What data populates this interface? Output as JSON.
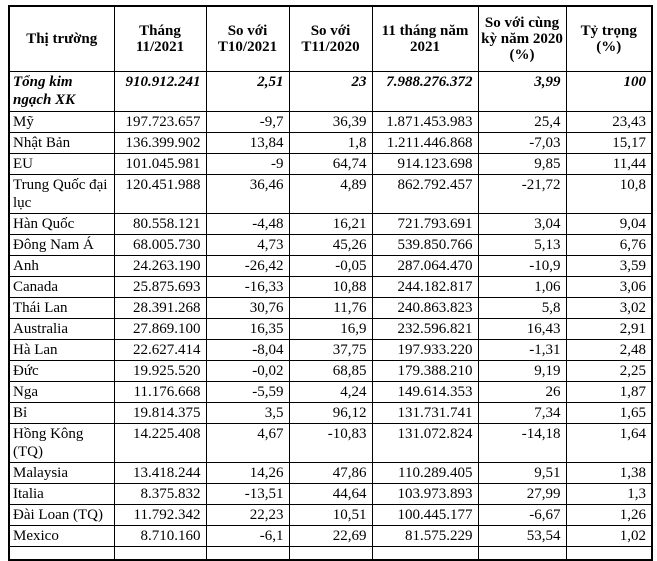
{
  "table": {
    "name": "export-markets-table",
    "columns": [
      "Thị trường",
      "Tháng 11/2021",
      "So với T10/2021",
      "So với T11/2020",
      "11 tháng năm 2021",
      "So với cùng kỳ năm 2020 (%)",
      "Tỷ trọng (%)"
    ],
    "rows": [
      {
        "label": "Tổng kim ngạch XK",
        "style": "total",
        "values": [
          "910.912.241",
          "2,51",
          "23",
          "7.988.276.372",
          "3,99",
          "100"
        ]
      },
      {
        "label": "Mỹ",
        "style": "normal",
        "values": [
          "197.723.657",
          "-9,7",
          "36,39",
          "1.871.453.983",
          "25,4",
          "23,43"
        ]
      },
      {
        "label": "Nhật Bản",
        "style": "normal",
        "values": [
          "136.399.902",
          "13,84",
          "1,8",
          "1.211.446.868",
          "-7,03",
          "15,17"
        ]
      },
      {
        "label": "EU",
        "style": "normal",
        "values": [
          "101.045.981",
          "-9",
          "64,74",
          "914.123.698",
          "9,85",
          "11,44"
        ]
      },
      {
        "label": "Trung Quốc đại lục",
        "style": "normal",
        "values": [
          "120.451.988",
          "36,46",
          "4,89",
          "862.792.457",
          "-21,72",
          "10,8"
        ]
      },
      {
        "label": "Hàn Quốc",
        "style": "normal",
        "values": [
          "80.558.121",
          "-4,48",
          "16,21",
          "721.793.691",
          "3,04",
          "9,04"
        ]
      },
      {
        "label": "Đông Nam Á",
        "style": "normal",
        "values": [
          "68.005.730",
          "4,73",
          "45,26",
          "539.850.766",
          "5,13",
          "6,76"
        ]
      },
      {
        "label": "Anh",
        "style": "normal",
        "values": [
          "24.263.190",
          "-26,42",
          "-0,05",
          "287.064.470",
          "-10,9",
          "3,59"
        ]
      },
      {
        "label": "Canada",
        "style": "normal",
        "values": [
          "25.875.693",
          "-16,33",
          "10,88",
          "244.182.817",
          "1,06",
          "3,06"
        ]
      },
      {
        "label": "Thái Lan",
        "style": "normal",
        "values": [
          "28.391.268",
          "30,76",
          "11,76",
          "240.863.823",
          "5,8",
          "3,02"
        ]
      },
      {
        "label": "Australia",
        "style": "normal",
        "values": [
          "27.869.100",
          "16,35",
          "16,9",
          "232.596.821",
          "16,43",
          "2,91"
        ]
      },
      {
        "label": "Hà Lan",
        "style": "normal",
        "values": [
          "22.627.414",
          "-8,04",
          "37,75",
          "197.933.220",
          "-1,31",
          "2,48"
        ]
      },
      {
        "label": "Đức",
        "style": "normal",
        "values": [
          "19.925.520",
          "-0,02",
          "68,85",
          "179.388.210",
          "9,19",
          "2,25"
        ]
      },
      {
        "label": "Nga",
        "style": "normal",
        "values": [
          "11.176.668",
          "-5,59",
          "4,24",
          "149.614.353",
          "26",
          "1,87"
        ]
      },
      {
        "label": "Bỉ",
        "style": "normal",
        "values": [
          "19.814.375",
          "3,5",
          "96,12",
          "131.731.741",
          "7,34",
          "1,65"
        ]
      },
      {
        "label": "Hồng Kông (TQ)",
        "style": "normal",
        "values": [
          "14.225.408",
          "4,67",
          "-10,83",
          "131.072.824",
          "-14,18",
          "1,64"
        ]
      },
      {
        "label": "Malaysia",
        "style": "normal",
        "values": [
          "13.418.244",
          "14,26",
          "47,86",
          "110.289.405",
          "9,51",
          "1,38"
        ]
      },
      {
        "label": "Italia",
        "style": "normal",
        "values": [
          "8.375.832",
          "-13,51",
          "44,64",
          "103.973.893",
          "27,99",
          "1,3"
        ]
      },
      {
        "label": "Đài Loan (TQ)",
        "style": "normal",
        "values": [
          "11.792.342",
          "22,23",
          "10,51",
          "100.445.177",
          "-6,67",
          "1,26"
        ]
      },
      {
        "label": "Mexico",
        "style": "normal",
        "values": [
          "8.710.160",
          "-6,1",
          "22,69",
          "81.575.229",
          "53,54",
          "1,02"
        ]
      }
    ]
  }
}
